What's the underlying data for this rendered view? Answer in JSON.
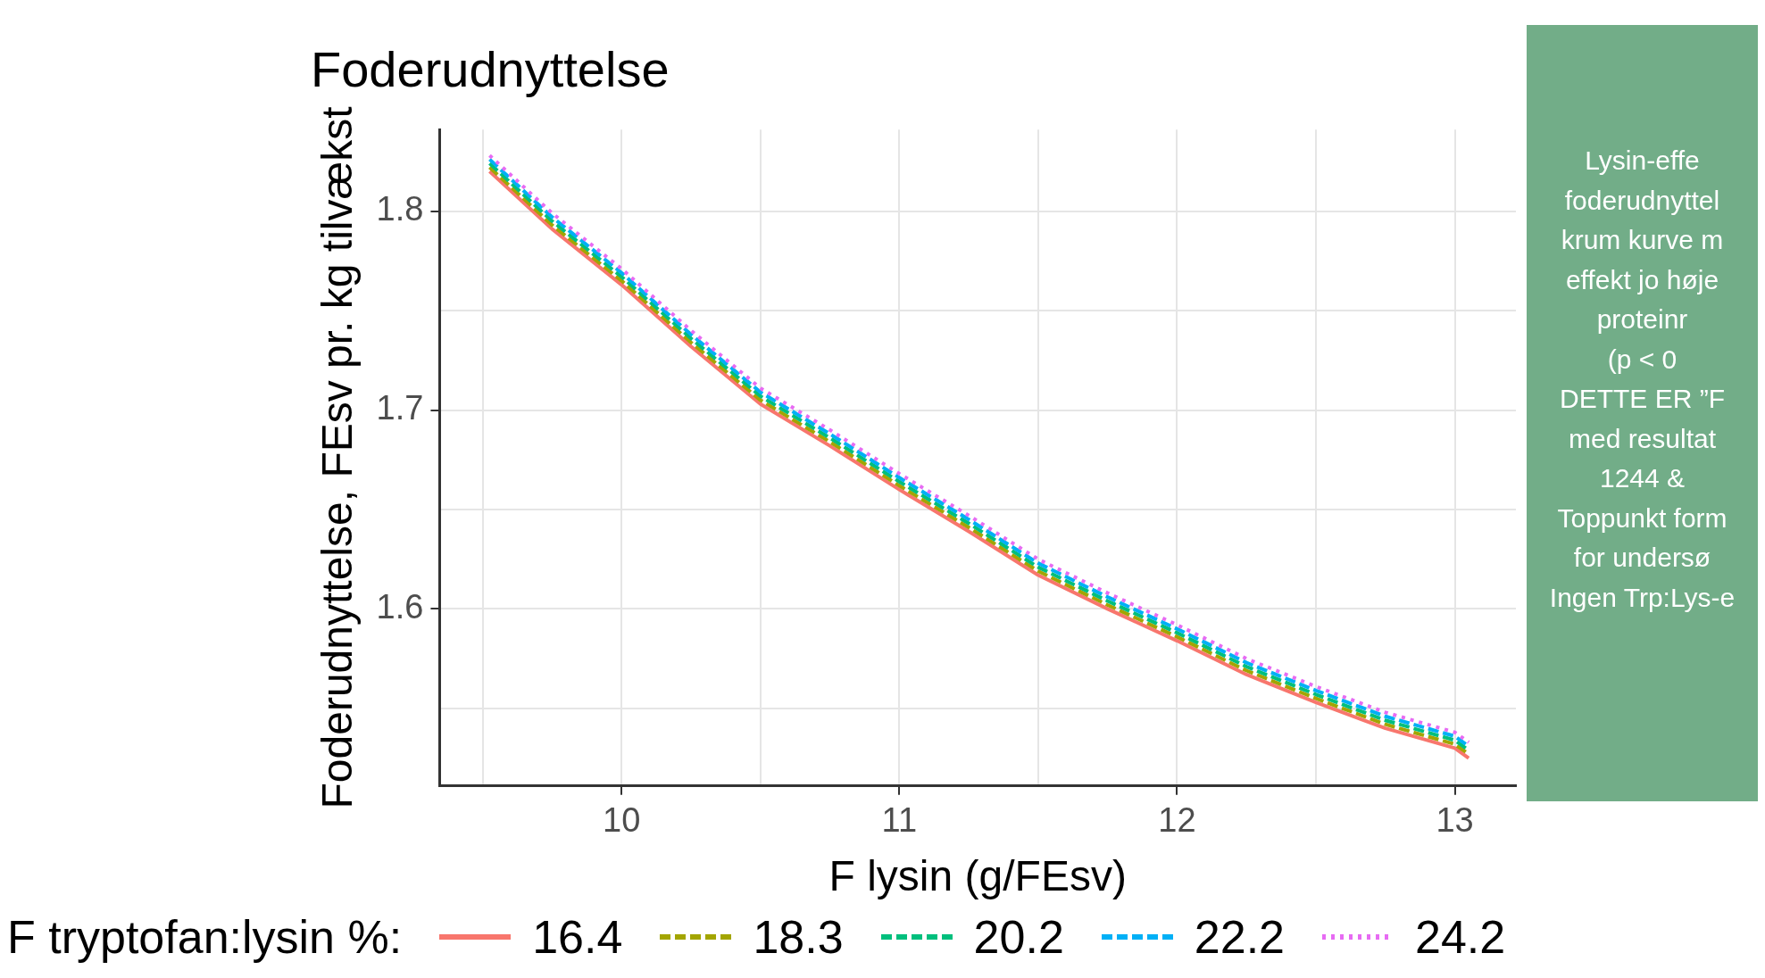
{
  "chart_data": {
    "type": "line",
    "title": "Foderudnyttelse",
    "xlabel": "F lysin (g/FEsv)",
    "ylabel": "Foderudnyttelse, FEsv pr. kg tilvækst",
    "legend_title": "F tryptofan:lysin %:",
    "legend": "bottom",
    "grid": true,
    "x": [
      9.525,
      9.75,
      10,
      10.25,
      10.5,
      10.75,
      11,
      11.25,
      11.5,
      11.75,
      12,
      12.25,
      12.5,
      12.75,
      13,
      13.05
    ],
    "series": [
      {
        "name": "16.4",
        "color": "#f8766d",
        "line_style": "solid",
        "values": [
          1.82,
          1.791,
          1.763,
          1.732,
          1.703,
          1.682,
          1.66,
          1.639,
          1.617,
          1.6,
          1.584,
          1.567,
          1.553,
          1.54,
          1.53,
          1.525
        ]
      },
      {
        "name": "18.3",
        "color": "#a3a500",
        "line_style": "dashed",
        "values": [
          1.822,
          1.793,
          1.765,
          1.734,
          1.705,
          1.684,
          1.662,
          1.641,
          1.619,
          1.602,
          1.586,
          1.569,
          1.555,
          1.542,
          1.532,
          1.527
        ]
      },
      {
        "name": "20.2",
        "color": "#00bf7d",
        "line_style": "dashed",
        "values": [
          1.824,
          1.795,
          1.767,
          1.736,
          1.707,
          1.686,
          1.664,
          1.643,
          1.621,
          1.604,
          1.588,
          1.571,
          1.557,
          1.544,
          1.534,
          1.529
        ]
      },
      {
        "name": "22.2",
        "color": "#00b0f6",
        "line_style": "dashed",
        "values": [
          1.826,
          1.797,
          1.769,
          1.738,
          1.709,
          1.688,
          1.666,
          1.645,
          1.623,
          1.606,
          1.59,
          1.573,
          1.559,
          1.546,
          1.536,
          1.531
        ]
      },
      {
        "name": "24.2",
        "color": "#e76bf3",
        "line_style": "dotted",
        "values": [
          1.828,
          1.799,
          1.771,
          1.74,
          1.711,
          1.69,
          1.668,
          1.647,
          1.625,
          1.608,
          1.592,
          1.575,
          1.561,
          1.548,
          1.538,
          1.533
        ]
      }
    ],
    "xlim": [
      9.345,
      13.22
    ],
    "xticks": [
      {
        "value": 9.5,
        "label": null
      },
      10,
      {
        "value": 10.5,
        "label": null
      },
      11,
      {
        "value": 11.5,
        "label": null
      },
      12,
      {
        "value": 12.5,
        "label": null
      },
      13
    ],
    "ylim": [
      1.511,
      1.841
    ],
    "yticks": [
      {
        "value": 1.55,
        "label": null
      },
      1.6,
      {
        "value": 1.65,
        "label": null
      },
      1.7,
      {
        "value": 1.75,
        "label": null
      },
      1.8
    ],
    "annotations": [
      "Lysin-effe",
      "foderudnyttel",
      "krum kurve m",
      "effekt jo høje",
      "proteinr",
      "(p < 0",
      "DETTE ER ”F",
      "med resultat",
      "1244 &",
      "Toppunkt form",
      "for undersø",
      "Ingen Trp:Lys-e"
    ]
  }
}
